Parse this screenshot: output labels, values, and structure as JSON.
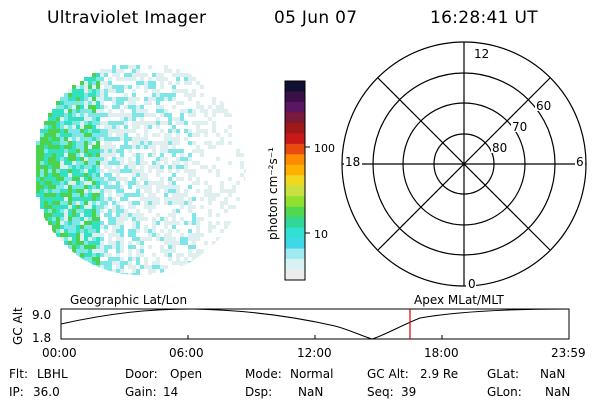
{
  "header": {
    "instrument": "Ultraviolet Imager",
    "date": "05 Jun 07",
    "time": "16:28:41 UT"
  },
  "colorbar": {
    "unit_label": "photon cm⁻²s⁻¹",
    "tick_labels": [
      "100",
      "10"
    ],
    "colors": [
      "#101030",
      "#3a1048",
      "#5a1660",
      "#7a1a3a",
      "#a01818",
      "#c81818",
      "#e84a10",
      "#ff8c00",
      "#ffb000",
      "#f0d820",
      "#c8e040",
      "#90e030",
      "#50d850",
      "#30d898",
      "#30e0d0",
      "#40d8e8",
      "#a0eaf0",
      "#d8f2f4",
      "#ececec"
    ]
  },
  "image_panel": {
    "colors": {
      "low": "#dfeeee",
      "mid": "#7ee6e6",
      "high": "#33e0c0",
      "peak": "#4cd24c"
    }
  },
  "polar_grid": {
    "mlt_labels": {
      "top": "12",
      "left": "18",
      "right": "6",
      "bottom": "0"
    },
    "lat_labels": [
      "80",
      "70",
      "60"
    ]
  },
  "timeline": {
    "left_label": "Geographic Lat/Lon",
    "right_label": "Apex MLat/MLT",
    "axis_label": "GC Alt",
    "y_labels": [
      "9.0",
      "1.8"
    ],
    "time_ticks": [
      "00:00",
      "06:00",
      "12:00",
      "18:00",
      "23:59"
    ],
    "marker_color": "#e00000"
  },
  "status": {
    "row1": [
      {
        "label": "Flt:",
        "value": "LBHL"
      },
      {
        "label": "Door:",
        "value": "Open"
      },
      {
        "label": "Mode:",
        "value": "Normal"
      },
      {
        "label": "GC Alt:",
        "value": "2.9 Re"
      },
      {
        "label": "GLat:",
        "value": "NaN"
      }
    ],
    "row2": [
      {
        "label": "IP:",
        "value": "36.0"
      },
      {
        "label": "Gain:",
        "value": "14"
      },
      {
        "label": "Dsp:",
        "value": "NaN"
      },
      {
        "label": "Seq:",
        "value": "39"
      },
      {
        "label": "GLon:",
        "value": "NaN"
      }
    ]
  }
}
